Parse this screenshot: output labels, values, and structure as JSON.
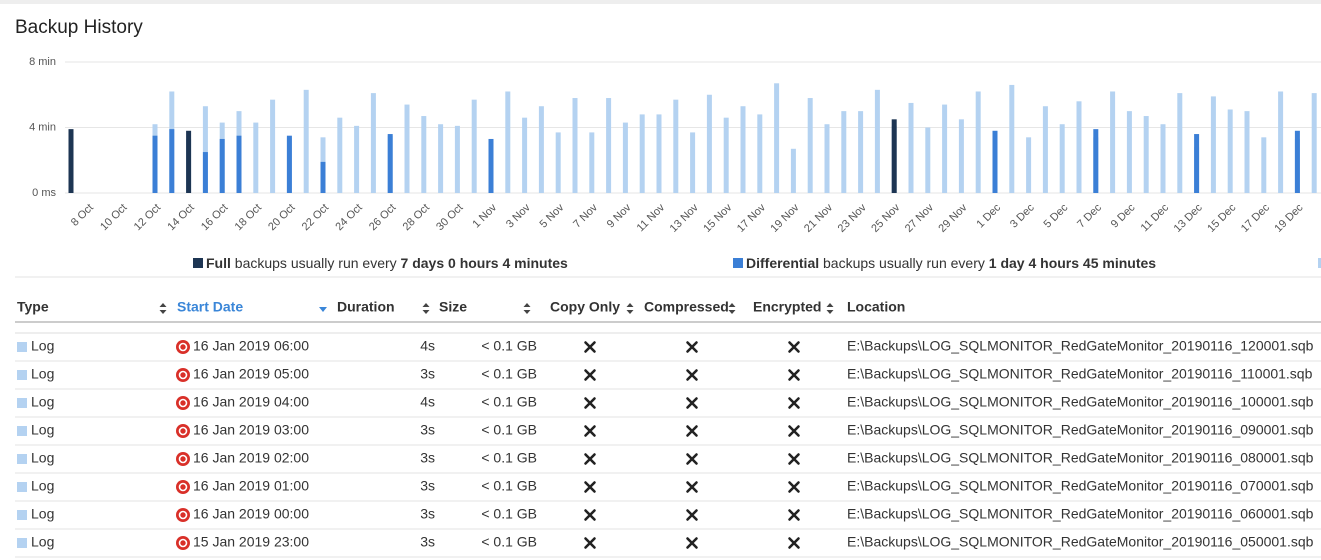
{
  "header": {
    "title": "Backup History"
  },
  "chart_data": {
    "type": "bar",
    "categories": [
      null,
      "8 Oct",
      null,
      "10 Oct",
      null,
      "12 Oct",
      null,
      "14 Oct",
      null,
      "16 Oct",
      null,
      "18 Oct",
      null,
      "20 Oct",
      null,
      "22 Oct",
      null,
      "24 Oct",
      null,
      "26 Oct",
      null,
      "28 Oct",
      null,
      "30 Oct",
      null,
      "1 Nov",
      null,
      "3 Nov",
      null,
      "5 Nov",
      null,
      "7 Nov",
      null,
      "9 Nov",
      null,
      "11 Nov",
      null,
      "13 Nov",
      null,
      "15 Nov",
      null,
      "17 Nov",
      null,
      "19 Nov",
      null,
      "21 Nov",
      null,
      "23 Nov",
      null,
      "25 Nov",
      null,
      "27 Nov",
      null,
      "29 Nov",
      null,
      "1 Dec",
      null,
      "3 Dec",
      null,
      "5 Dec",
      null,
      "7 Dec",
      null,
      "9 Dec",
      null,
      "11 Dec",
      null,
      "13 Dec",
      null,
      "15 Dec",
      null,
      "17 Dec",
      null,
      "19 Dec",
      null
    ],
    "ylim": [
      0,
      8
    ],
    "yticks": [
      {
        "value": 0,
        "label": "0 ms"
      },
      {
        "value": 4,
        "label": "4 min"
      },
      {
        "value": 8,
        "label": "8 min"
      }
    ],
    "grid": true,
    "series": [
      {
        "name": "Full",
        "note": "backups usually run every",
        "interval": "7 days 0 hours 4 minutes",
        "color": "#1d3553",
        "values": [
          3.9,
          null,
          null,
          null,
          null,
          null,
          null,
          3.8,
          null,
          null,
          null,
          null,
          null,
          null,
          null,
          null,
          null,
          null,
          null,
          null,
          null,
          null,
          null,
          null,
          null,
          null,
          null,
          null,
          null,
          null,
          null,
          null,
          null,
          null,
          null,
          null,
          null,
          null,
          null,
          null,
          null,
          null,
          null,
          null,
          null,
          null,
          null,
          null,
          null,
          4.5,
          null,
          null,
          null,
          null,
          null,
          null,
          null,
          null,
          null,
          null,
          null,
          null,
          null,
          null,
          null,
          null,
          null,
          null,
          null,
          null,
          null,
          null,
          null,
          null,
          null
        ]
      },
      {
        "name": "Differential",
        "note": "backups usually run every",
        "interval": "1 day 4 hours 45 minutes",
        "color": "#3b7fd6",
        "values": [
          null,
          null,
          null,
          null,
          null,
          3.5,
          3.9,
          null,
          2.5,
          3.3,
          3.5,
          null,
          null,
          3.5,
          null,
          1.9,
          null,
          null,
          null,
          3.6,
          null,
          null,
          null,
          null,
          null,
          3.3,
          null,
          null,
          null,
          null,
          null,
          null,
          null,
          null,
          null,
          null,
          null,
          null,
          null,
          null,
          null,
          null,
          null,
          null,
          null,
          null,
          null,
          null,
          null,
          null,
          null,
          null,
          null,
          null,
          null,
          3.8,
          null,
          null,
          null,
          null,
          null,
          3.9,
          null,
          null,
          null,
          null,
          null,
          3.6,
          null,
          null,
          null,
          null,
          null,
          3.8,
          null
        ]
      },
      {
        "color": "#b4d2f1",
        "values": [
          null,
          null,
          null,
          null,
          null,
          4.2,
          6.2,
          3.3,
          5.3,
          4.3,
          5.0,
          4.3,
          5.7,
          3.4,
          6.3,
          3.4,
          4.6,
          4.1,
          6.1,
          3.5,
          5.4,
          4.7,
          4.2,
          4.1,
          5.7,
          3.2,
          6.2,
          4.6,
          5.3,
          3.7,
          5.8,
          3.7,
          5.8,
          4.3,
          4.8,
          4.8,
          5.7,
          3.7,
          6.0,
          4.6,
          5.3,
          4.8,
          6.7,
          2.7,
          5.8,
          4.2,
          5.0,
          5.0,
          6.3,
          4.1,
          5.5,
          4.0,
          5.4,
          4.5,
          6.2,
          3.3,
          6.6,
          3.4,
          5.3,
          4.2,
          5.6,
          3.4,
          6.2,
          5.0,
          4.7,
          4.2,
          6.1,
          2.8,
          5.9,
          5.1,
          5.0,
          3.4,
          6.2,
          3.3,
          6.1
        ]
      }
    ]
  },
  "table": {
    "columns": [
      "Type",
      "Start Date",
      "Duration",
      "Size",
      "Copy Only",
      "Compressed",
      "Encrypted",
      "Location"
    ],
    "rows": [
      {
        "type": "Log",
        "start": "16 Jan 2019 06:00",
        "duration": "4s",
        "size": "< 0.1 GB",
        "location": "E:\\Backups\\LOG_SQLMONITOR_RedGateMonitor_20190116_120001.sqb"
      },
      {
        "type": "Log",
        "start": "16 Jan 2019 05:00",
        "duration": "3s",
        "size": "< 0.1 GB",
        "location": "E:\\Backups\\LOG_SQLMONITOR_RedGateMonitor_20190116_110001.sqb"
      },
      {
        "type": "Log",
        "start": "16 Jan 2019 04:00",
        "duration": "4s",
        "size": "< 0.1 GB",
        "location": "E:\\Backups\\LOG_SQLMONITOR_RedGateMonitor_20190116_100001.sqb"
      },
      {
        "type": "Log",
        "start": "16 Jan 2019 03:00",
        "duration": "3s",
        "size": "< 0.1 GB",
        "location": "E:\\Backups\\LOG_SQLMONITOR_RedGateMonitor_20190116_090001.sqb"
      },
      {
        "type": "Log",
        "start": "16 Jan 2019 02:00",
        "duration": "3s",
        "size": "< 0.1 GB",
        "location": "E:\\Backups\\LOG_SQLMONITOR_RedGateMonitor_20190116_080001.sqb"
      },
      {
        "type": "Log",
        "start": "16 Jan 2019 01:00",
        "duration": "3s",
        "size": "< 0.1 GB",
        "location": "E:\\Backups\\LOG_SQLMONITOR_RedGateMonitor_20190116_070001.sqb"
      },
      {
        "type": "Log",
        "start": "16 Jan 2019 00:00",
        "duration": "3s",
        "size": "< 0.1 GB",
        "location": "E:\\Backups\\LOG_SQLMONITOR_RedGateMonitor_20190116_060001.sqb"
      },
      {
        "type": "Log",
        "start": "15 Jan 2019 23:00",
        "duration": "3s",
        "size": "< 0.1 GB",
        "location": "E:\\Backups\\LOG_SQLMONITOR_RedGateMonitor_20190116_050001.sqb"
      }
    ]
  }
}
